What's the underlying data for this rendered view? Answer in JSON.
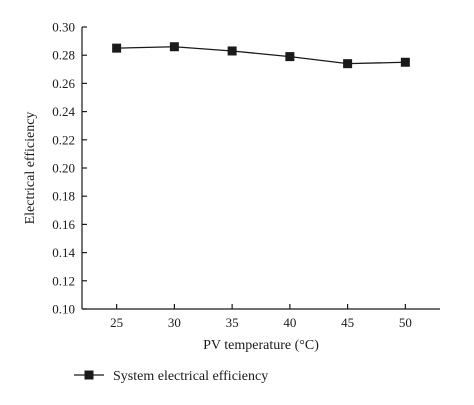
{
  "chart_data": {
    "type": "line",
    "title": "",
    "xlabel": "PV temperature (°C)",
    "ylabel": "Electrical efficiency",
    "x": [
      25,
      30,
      35,
      40,
      45,
      50
    ],
    "x_tick_labels": [
      "25",
      "30",
      "35",
      "40",
      "45",
      "50"
    ],
    "y_tick_labels": [
      "0.10",
      "0.12",
      "0.14",
      "0.16",
      "0.18",
      "0.20",
      "0.22",
      "0.24",
      "0.26",
      "0.28",
      "0.30"
    ],
    "xlim": [
      22,
      53
    ],
    "ylim": [
      0.1,
      0.3
    ],
    "grid": false,
    "legend_position": "bottom-left, below plot",
    "series": [
      {
        "name": "System electrical efficiency",
        "marker": "square",
        "color": "#1a1a1a",
        "values": [
          0.285,
          0.286,
          0.283,
          0.279,
          0.274,
          0.275
        ]
      }
    ]
  }
}
